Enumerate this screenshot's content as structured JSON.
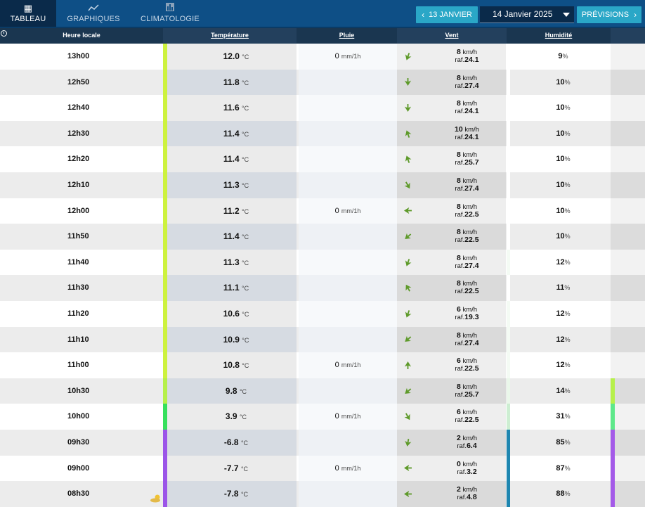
{
  "nav": {
    "tabs": [
      {
        "label": "TABLEAU",
        "icon": "table-icon",
        "glyph": "▦"
      },
      {
        "label": "GRAPHIQUES",
        "icon": "line-chart-icon",
        "glyph": "⟋"
      },
      {
        "label": "CLIMATOLOGIE",
        "icon": "bar-chart-icon",
        "glyph": "▥"
      }
    ],
    "prev_label": "13 JANVIER",
    "date_value": "14 Janvier 2025",
    "next_label": "PRÉVISIONS"
  },
  "headers": {
    "time": "Heure locale",
    "temperature": "Température",
    "rain": "Pluie",
    "wind": "Vent",
    "humidity": "Humidité"
  },
  "units": {
    "temp": "°C",
    "rain": "mm/1h",
    "wind": "km/h",
    "gust_prefix": "raf.",
    "humidity": "%"
  },
  "colors": {
    "topbar": "#0e4f86",
    "accent": "#2aa7c7",
    "arrow": "#5e9a2a",
    "row_light": "#ffffff",
    "row_dark": "#ececec"
  },
  "rows": [
    {
      "time": "13h00",
      "temp": "12.0",
      "rain": "0",
      "wind": "8",
      "gust": "24.1",
      "hum": "9",
      "dir": 200,
      "tcolor": "#cdf23e",
      "hcolor": "#ffffff",
      "ecolor": ""
    },
    {
      "time": "12h50",
      "temp": "11.8",
      "rain": "",
      "wind": "8",
      "gust": "27.4",
      "hum": "10",
      "dir": 180,
      "tcolor": "#cdf23e",
      "hcolor": "#ffffff",
      "ecolor": ""
    },
    {
      "time": "12h40",
      "temp": "11.6",
      "rain": "",
      "wind": "8",
      "gust": "24.1",
      "hum": "10",
      "dir": 180,
      "tcolor": "#cdf23e",
      "hcolor": "#ffffff",
      "ecolor": ""
    },
    {
      "time": "12h30",
      "temp": "11.4",
      "rain": "",
      "wind": "10",
      "gust": "24.1",
      "hum": "10",
      "dir": 340,
      "tcolor": "#cdf23e",
      "hcolor": "#ffffff",
      "ecolor": ""
    },
    {
      "time": "12h20",
      "temp": "11.4",
      "rain": "",
      "wind": "8",
      "gust": "25.7",
      "hum": "10",
      "dir": 340,
      "tcolor": "#cdf23e",
      "hcolor": "#ffffff",
      "ecolor": ""
    },
    {
      "time": "12h10",
      "temp": "11.3",
      "rain": "",
      "wind": "8",
      "gust": "27.4",
      "hum": "10",
      "dir": 150,
      "tcolor": "#cdf23e",
      "hcolor": "#ffffff",
      "ecolor": ""
    },
    {
      "time": "12h00",
      "temp": "11.2",
      "rain": "0",
      "wind": "8",
      "gust": "22.5",
      "hum": "10",
      "dir": 270,
      "tcolor": "#cdf23e",
      "hcolor": "#ffffff",
      "ecolor": ""
    },
    {
      "time": "11h50",
      "temp": "11.4",
      "rain": "",
      "wind": "8",
      "gust": "22.5",
      "hum": "10",
      "dir": 230,
      "tcolor": "#cdf23e",
      "hcolor": "#ffffff",
      "ecolor": ""
    },
    {
      "time": "11h40",
      "temp": "11.3",
      "rain": "",
      "wind": "8",
      "gust": "27.4",
      "hum": "12",
      "dir": 200,
      "tcolor": "#cdf23e",
      "hcolor": "#f4fbf4",
      "ecolor": ""
    },
    {
      "time": "11h30",
      "temp": "11.1",
      "rain": "",
      "wind": "8",
      "gust": "22.5",
      "hum": "11",
      "dir": 330,
      "tcolor": "#cdf23e",
      "hcolor": "#ffffff",
      "ecolor": ""
    },
    {
      "time": "11h20",
      "temp": "10.6",
      "rain": "",
      "wind": "6",
      "gust": "19.3",
      "hum": "12",
      "dir": 200,
      "tcolor": "#cdf23e",
      "hcolor": "#f4fbf4",
      "ecolor": ""
    },
    {
      "time": "11h10",
      "temp": "10.9",
      "rain": "",
      "wind": "8",
      "gust": "27.4",
      "hum": "12",
      "dir": 230,
      "tcolor": "#cdf23e",
      "hcolor": "#f4fbf4",
      "ecolor": ""
    },
    {
      "time": "11h00",
      "temp": "10.8",
      "rain": "0",
      "wind": "6",
      "gust": "22.5",
      "hum": "12",
      "dir": 0,
      "tcolor": "#cdf23e",
      "hcolor": "#f4fbf4",
      "ecolor": ""
    },
    {
      "time": "10h30",
      "temp": "9.8",
      "rain": "",
      "wind": "8",
      "gust": "25.7",
      "hum": "14",
      "dir": 230,
      "tcolor": "#b6f04a",
      "hcolor": "#eaf7ea",
      "ecolor": "#b6f04a"
    },
    {
      "time": "10h00",
      "temp": "3.9",
      "rain": "0",
      "wind": "6",
      "gust": "22.5",
      "hum": "31",
      "dir": 150,
      "tcolor": "#36e05c",
      "hcolor": "#cdeed2",
      "ecolor": "#5ee88a"
    },
    {
      "time": "09h30",
      "temp": "-6.8",
      "rain": "",
      "wind": "2",
      "gust": "6.4",
      "hum": "85",
      "dir": 190,
      "tcolor": "#9b55e8",
      "hcolor": "#1e86b0",
      "ecolor": "#a45ae8"
    },
    {
      "time": "09h00",
      "temp": "-7.7",
      "rain": "0",
      "wind": "0",
      "gust": "3.2",
      "hum": "87",
      "dir": 270,
      "tcolor": "#9b55e8",
      "hcolor": "#1e86b0",
      "ecolor": "#a45ae8"
    },
    {
      "time": "08h30",
      "temp": "-7.8",
      "rain": "",
      "wind": "2",
      "gust": "4.8",
      "hum": "88",
      "dir": 270,
      "tcolor": "#9b55e8",
      "hcolor": "#1e86b0",
      "ecolor": "#a45ae8",
      "weather_icon": "sun-cloud-icon"
    }
  ]
}
